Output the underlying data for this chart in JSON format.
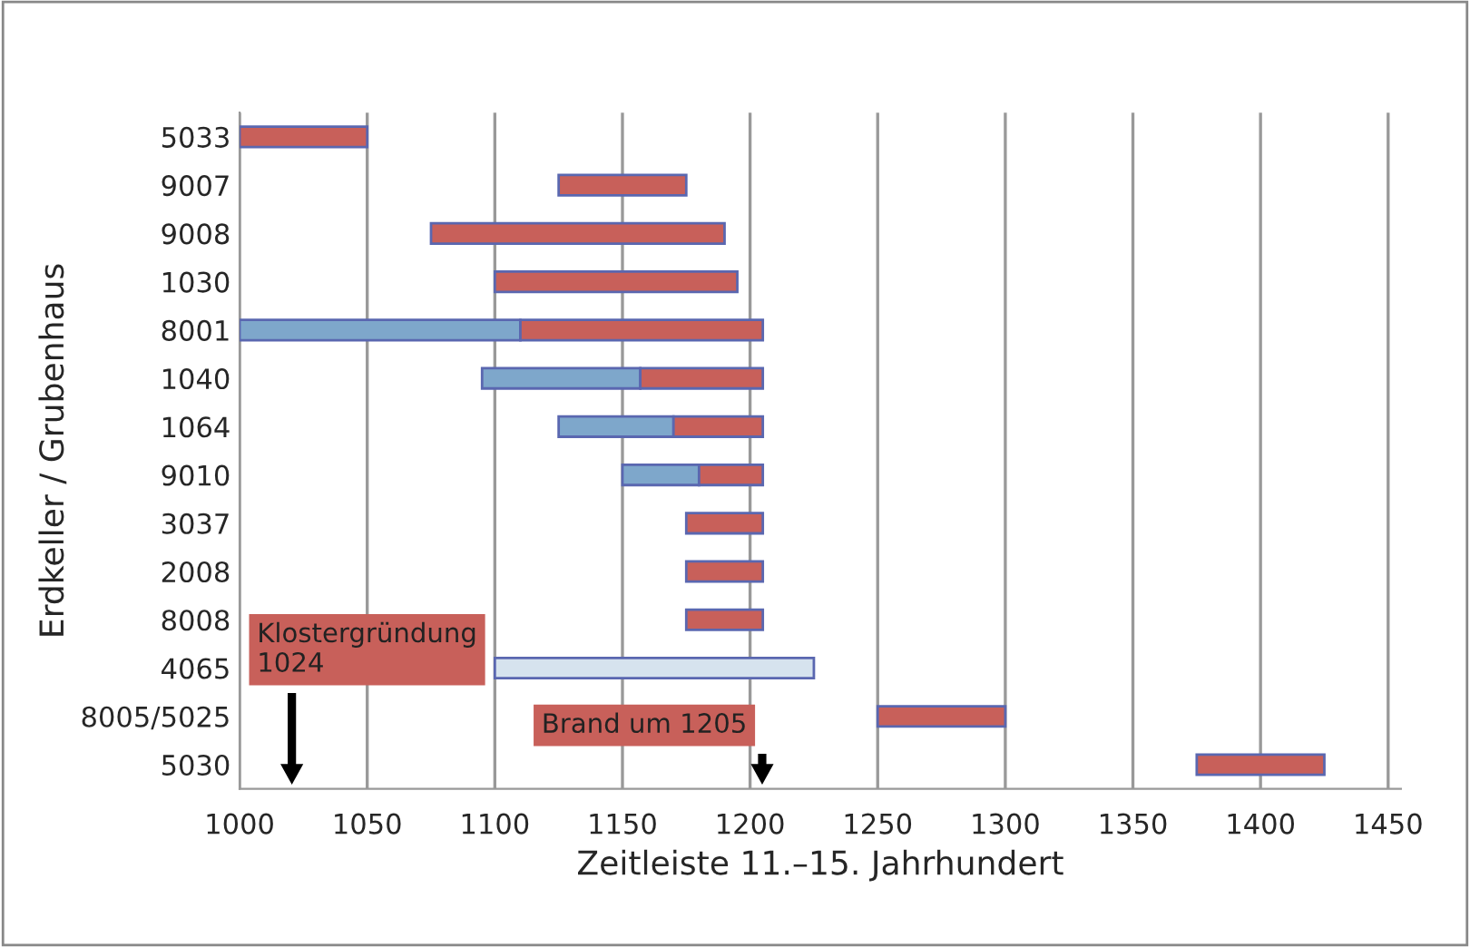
{
  "chart_data": {
    "type": "bar",
    "orientation": "horizontal",
    "xlabel": "Zeitleiste 11.–15. Jahrhundert",
    "ylabel": "Erdkeller / Grubenhaus",
    "categories": [
      "5033",
      "9007",
      "9008",
      "1030",
      "8001",
      "1040",
      "1064",
      "9010",
      "3037",
      "2008",
      "8008",
      "4065",
      "8005/5025",
      "5030"
    ],
    "series": [
      {
        "colors": [
          "#7ea7cb",
          "#7ea7cb",
          "#7ea7cb",
          "#7ea7cb",
          "#7ea7cb",
          "#7ea7cb",
          "#7ea7cb",
          "#7ea7cb",
          "#7ea7cb",
          "#7ea7cb",
          "#7ea7cb",
          "#d6e3ee",
          "#7ea7cb",
          "#7ea7cb"
        ],
        "base": [
          null,
          null,
          null,
          null,
          1000,
          1095,
          1125,
          1150,
          null,
          null,
          null,
          1100,
          null,
          null
        ],
        "values": [
          null,
          null,
          null,
          null,
          110,
          62,
          45,
          30,
          null,
          null,
          null,
          125,
          null,
          null
        ]
      },
      {
        "color": "#c8605a",
        "base": [
          1000,
          1125,
          1075,
          1100,
          1110,
          1157,
          1170,
          1180,
          1175,
          1175,
          1175,
          null,
          1250,
          1375
        ],
        "values": [
          50,
          50,
          115,
          95,
          95,
          48,
          35,
          25,
          30,
          30,
          30,
          null,
          50,
          50
        ]
      }
    ],
    "xlim": [
      1000,
      1455
    ],
    "xticks": [
      1000,
      1050,
      1100,
      1150,
      1200,
      1250,
      1300,
      1350,
      1400,
      1450
    ],
    "grid": "x",
    "annotations": [
      "Klostergründung\n1024",
      "Brand um 1205"
    ]
  }
}
